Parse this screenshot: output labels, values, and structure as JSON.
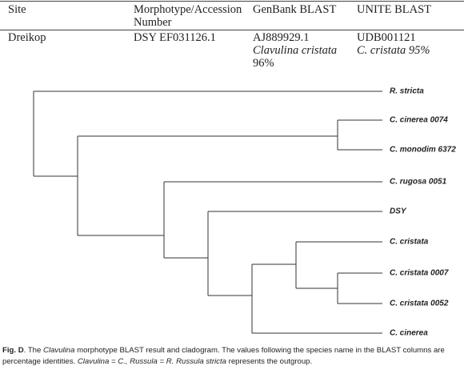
{
  "table": {
    "header": [
      "Site",
      "Morphotype/Accession Number",
      "GenBank BLAST",
      "UNITE BLAST"
    ],
    "rows": [
      [
        [
          "Dreikop"
        ],
        [
          "DSY EF031126.1"
        ],
        [
          "AJ889929.1",
          "Clavulina cristata",
          "96%"
        ],
        [
          "UDB001121",
          "C. cristata 95%"
        ]
      ]
    ]
  },
  "cladogram": {
    "leaves": [
      "R. stricta",
      "C. cinerea 0074",
      "C. monodim 6372",
      "C. rugosa 0051",
      "DSY",
      "C. cristata",
      "C. cristata 0007",
      "C. cristata 0052",
      "C. cinerea"
    ]
  },
  "caption": [
    "Fig. D",
    ". The ",
    "Clavulina",
    " morphotype BLAST result and cladogram. The values following the species name in the BLAST columns are percentage identities. ",
    "Clavulina = C., Russula = R.",
    " ",
    "Russula stricta",
    " represents the outgroup."
  ]
}
